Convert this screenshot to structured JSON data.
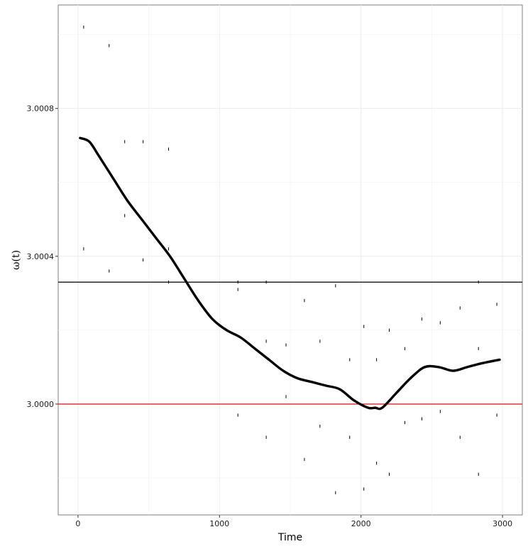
{
  "chart_data": {
    "type": "scatter",
    "title": "",
    "xlabel": "Time",
    "ylabel": "ω(t)",
    "xlim": [
      -140,
      3140
    ],
    "ylim": [
      2.9997,
      3.00108
    ],
    "x_ticks": [
      0,
      1000,
      2000,
      3000
    ],
    "x_tick_labels": [
      "0",
      "1000",
      "2000",
      "3000"
    ],
    "y_ticks": [
      3.0,
      3.0004,
      3.0008
    ],
    "y_tick_labels": [
      "3.0000",
      "3.0004",
      "3.0008"
    ],
    "grid": true,
    "legend": "none",
    "hlines": [
      {
        "y": 3.00033,
        "color": "#000000"
      },
      {
        "y": 3.0,
        "color": "#d62728"
      }
    ],
    "points": {
      "x": [
        40,
        40,
        220,
        220,
        330,
        330,
        460,
        460,
        640,
        640,
        640,
        1130,
        1130,
        1130,
        1330,
        1330,
        1330,
        1470,
        1470,
        1600,
        1600,
        1710,
        1710,
        1820,
        1820,
        1920,
        1920,
        2020,
        2020,
        2110,
        2110,
        2200,
        2200,
        2310,
        2310,
        2430,
        2430,
        2560,
        2560,
        2700,
        2700,
        2830,
        2830,
        2830,
        2960,
        2960
      ],
      "y": [
        3.00102,
        3.00042,
        3.00097,
        3.00036,
        3.00071,
        3.00051,
        3.00071,
        3.00039,
        3.00069,
        3.00042,
        3.00033,
        3.00033,
        3.00031,
        2.99997,
        3.00033,
        3.00017,
        2.99991,
        3.00016,
        3.00002,
        3.00028,
        2.99985,
        3.00017,
        2.99994,
        3.00032,
        2.99976,
        3.00012,
        2.99991,
        3.00021,
        2.99977,
        3.00012,
        2.99984,
        3.0002,
        2.99981,
        3.00015,
        2.99995,
        3.00023,
        2.99996,
        3.00022,
        2.99998,
        3.00026,
        2.99991,
        3.00033,
        3.00015,
        2.99981,
        3.00027,
        2.99997
      ]
    },
    "smooth": {
      "x": [
        15,
        80,
        150,
        250,
        350,
        450,
        550,
        650,
        750,
        850,
        950,
        1050,
        1150,
        1250,
        1350,
        1450,
        1550,
        1650,
        1750,
        1850,
        1950,
        2050,
        2100,
        2150,
        2250,
        2350,
        2450,
        2550,
        2650,
        2750,
        2850,
        2980
      ],
      "y": [
        3.00072,
        3.00071,
        3.00067,
        3.00061,
        3.00055,
        3.0005,
        3.00045,
        3.0004,
        3.00034,
        3.00028,
        3.00023,
        3.0002,
        3.00018,
        3.00015,
        3.00012,
        3.00009,
        3.00007,
        3.00006,
        3.00005,
        3.00004,
        3.00001,
        2.99999,
        2.99999,
        2.99999,
        3.00003,
        3.00007,
        3.0001,
        3.0001,
        3.00009,
        3.0001,
        3.00011,
        3.00012
      ]
    }
  }
}
